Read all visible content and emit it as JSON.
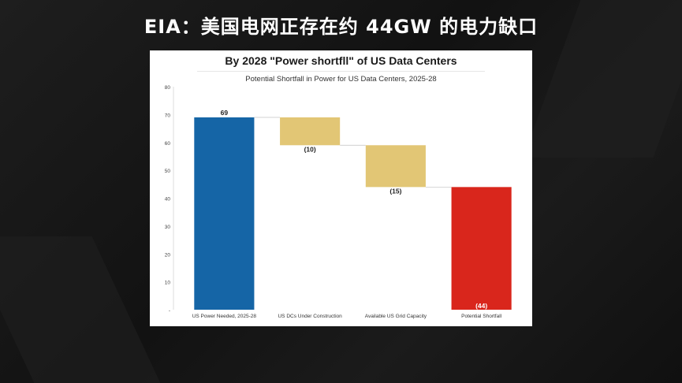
{
  "headline": "EIA：美国电网正存在约 44GW 的电力缺口",
  "chart_data": {
    "type": "bar",
    "title": "By 2028 \"Power shortfll\" of US Data Centers",
    "subtitle": "Potential Shortfall in Power for US Data Centers, 2025-28",
    "categories": [
      "US Power Needed, 2025-28",
      "US DCs Under Construction",
      "Available US Grid Capacity",
      "Potential Shortfall"
    ],
    "values": [
      69,
      -10,
      -15,
      44
    ],
    "data_labels": [
      "69",
      "(10)",
      "(15)",
      "(44)"
    ],
    "y_ticks": [
      "-",
      "10",
      "20",
      "30",
      "40",
      "50",
      "60",
      "70",
      "80"
    ],
    "ylim": [
      0,
      80
    ],
    "colors": {
      "needed": "#1565a6",
      "reduction": "#e2c675",
      "shortfall": "#d9261c"
    }
  }
}
